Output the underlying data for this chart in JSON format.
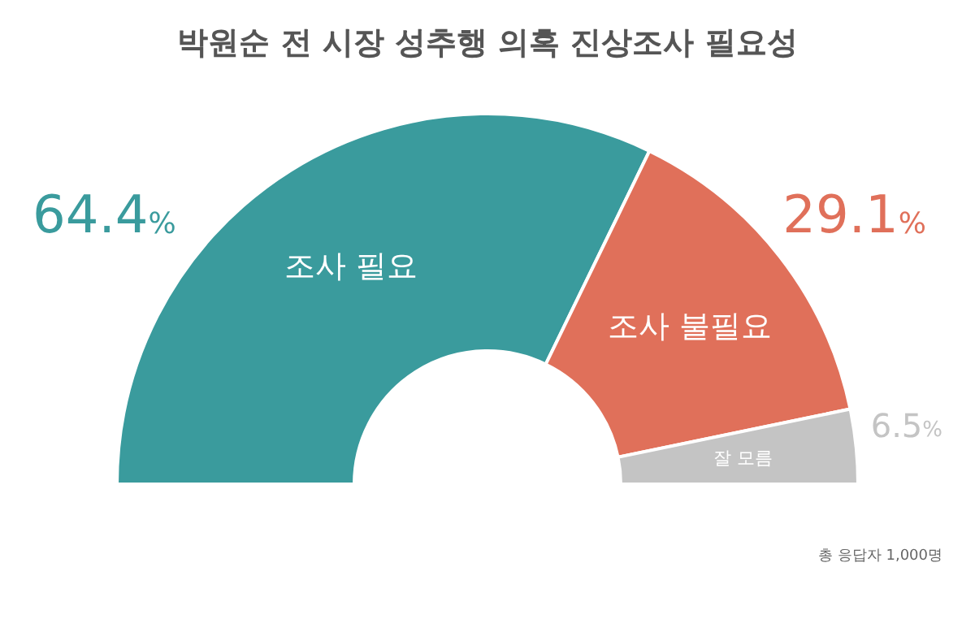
{
  "chart_data": {
    "type": "donut",
    "title": "박원순 전 시장 성추행 의혹 진상조사 필요성",
    "categories": [
      "조사 필요",
      "조사 불필요",
      "잘 모름"
    ],
    "values": [
      64.4,
      29.1,
      6.5
    ],
    "colors": [
      "#3a9b9d",
      "#e0705a",
      "#c4c4c4"
    ],
    "value_labels": [
      "64.4%",
      "29.1%",
      "6.5%"
    ],
    "annotations": [
      "총 응답자 1,000명"
    ],
    "legend": false
  }
}
